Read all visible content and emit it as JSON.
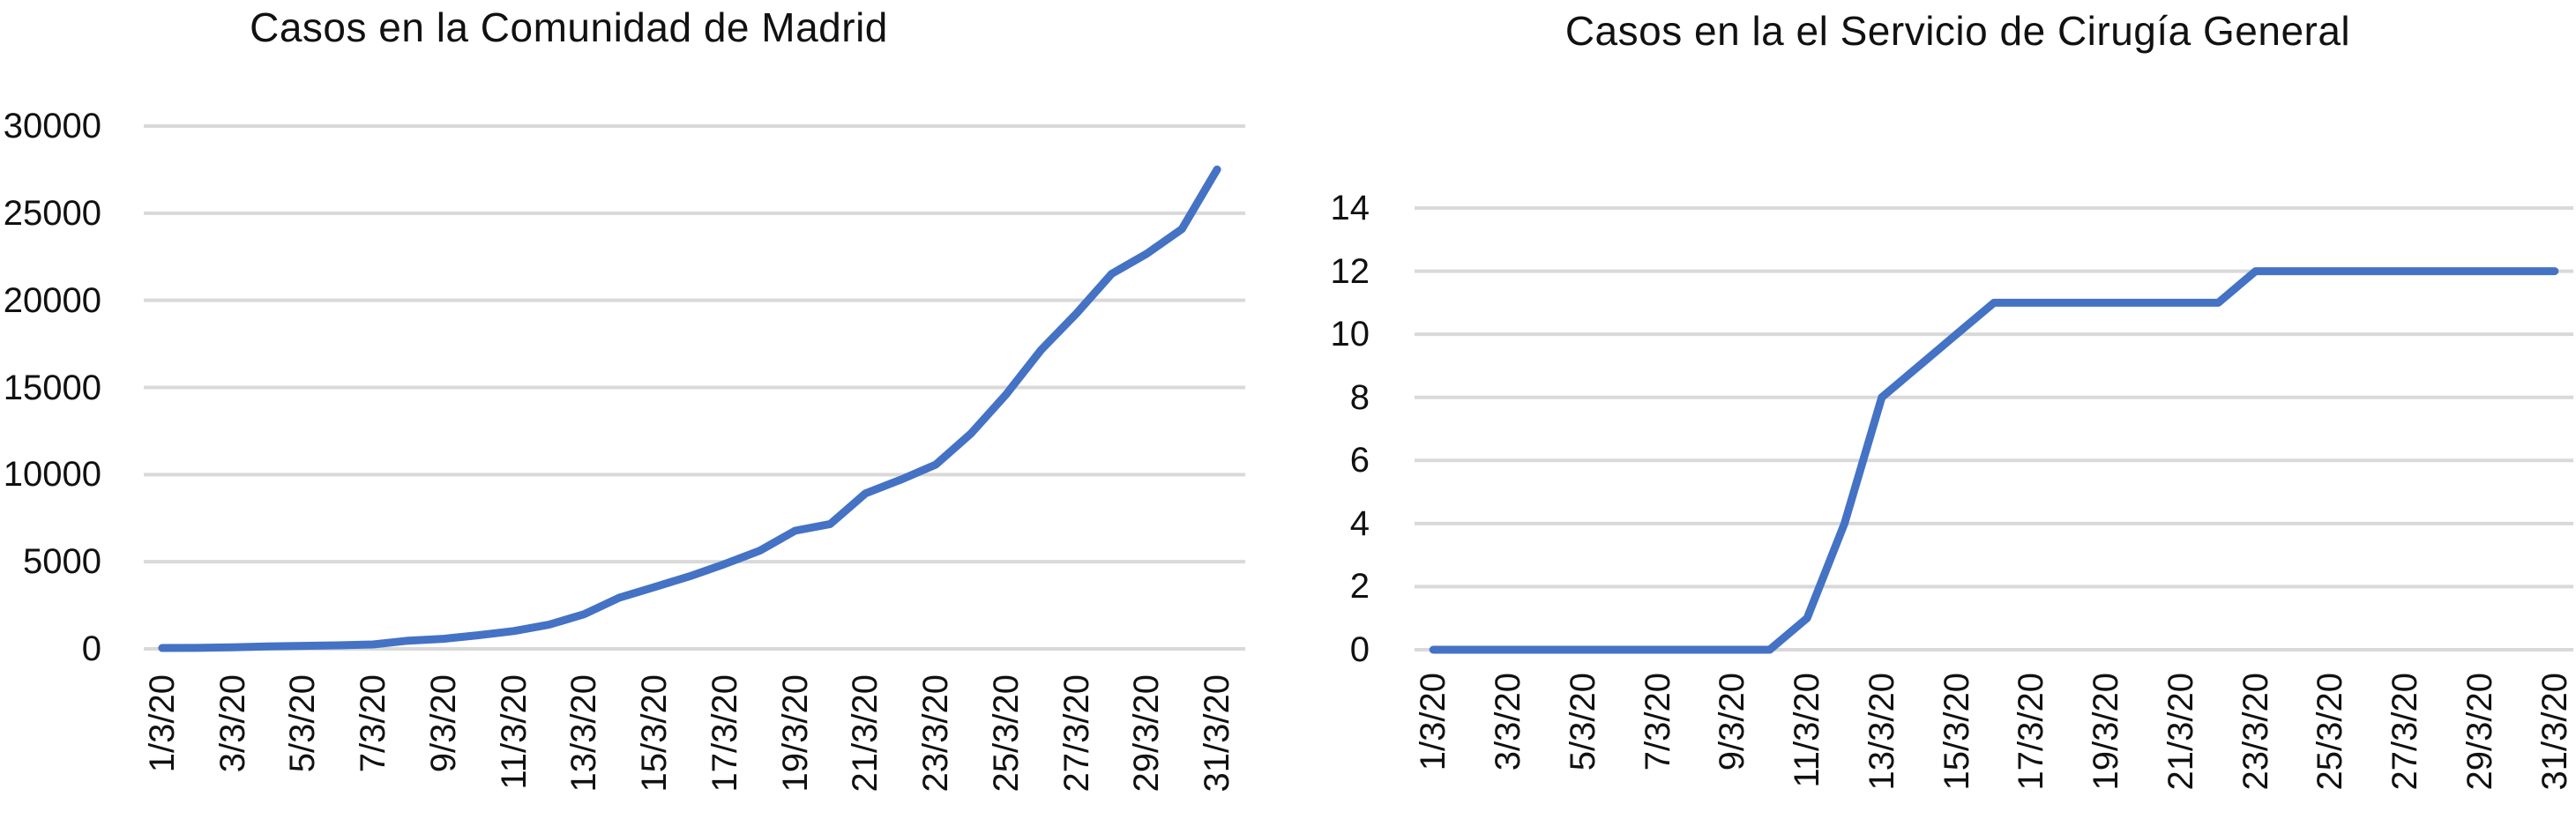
{
  "figure": {
    "background_color": "#ffffff",
    "text_color": "#111111"
  },
  "chart_data": [
    {
      "type": "line",
      "title": "Casos en la Comunidad de Madrid",
      "line_color": "#4472C4",
      "grid_color": "#D9D9D9",
      "grid": true,
      "legend_position": "none",
      "xlabel": "",
      "ylabel": "",
      "ylim": [
        0,
        30000
      ],
      "yticks": [
        0,
        5000,
        10000,
        15000,
        20000,
        25000,
        30000
      ],
      "xtick_labels_shown": [
        "1/3/20",
        "3/3/20",
        "5/3/20",
        "7/3/20",
        "9/3/20",
        "11/3/20",
        "13/3/20",
        "15/3/20",
        "17/3/20",
        "19/3/20",
        "21/3/20",
        "23/3/20",
        "25/3/20",
        "27/3/20",
        "29/3/20",
        "31/3/20"
      ],
      "x": [
        "1/3/20",
        "2/3/20",
        "3/3/20",
        "4/3/20",
        "5/3/20",
        "6/3/20",
        "7/3/20",
        "8/3/20",
        "9/3/20",
        "10/3/20",
        "11/3/20",
        "12/3/20",
        "13/3/20",
        "14/3/20",
        "15/3/20",
        "16/3/20",
        "17/3/20",
        "18/3/20",
        "19/3/20",
        "20/3/20",
        "21/3/20",
        "22/3/20",
        "23/3/20",
        "24/3/20",
        "25/3/20",
        "26/3/20",
        "27/3/20",
        "28/3/20",
        "29/3/20",
        "30/3/20",
        "31/3/20"
      ],
      "values": [
        49,
        58,
        90,
        137,
        174,
        202,
        252,
        469,
        577,
        782,
        1024,
        1388,
        1990,
        2940,
        3544,
        4165,
        4871,
        5637,
        6777,
        7165,
        8921,
        9702,
        10575,
        12352,
        14597,
        17166,
        19243,
        21520,
        22677,
        24090,
        27509
      ]
    },
    {
      "type": "line",
      "title": "Casos en la el Servicio de Cirugía General",
      "line_color": "#4472C4",
      "grid_color": "#D9D9D9",
      "grid": true,
      "legend_position": "none",
      "xlabel": "",
      "ylabel": "",
      "ylim": [
        0,
        14
      ],
      "yticks": [
        0,
        2,
        4,
        6,
        8,
        10,
        12,
        14
      ],
      "xtick_labels_shown": [
        "1/3/20",
        "3/3/20",
        "5/3/20",
        "7/3/20",
        "9/3/20",
        "11/3/20",
        "13/3/20",
        "15/3/20",
        "17/3/20",
        "19/3/20",
        "21/3/20",
        "23/3/20",
        "25/3/20",
        "27/3/20",
        "29/3/20",
        "31/3/20"
      ],
      "x": [
        "1/3/20",
        "2/3/20",
        "3/3/20",
        "4/3/20",
        "5/3/20",
        "6/3/20",
        "7/3/20",
        "8/3/20",
        "9/3/20",
        "10/3/20",
        "11/3/20",
        "12/3/20",
        "13/3/20",
        "14/3/20",
        "15/3/20",
        "16/3/20",
        "17/3/20",
        "18/3/20",
        "19/3/20",
        "20/3/20",
        "21/3/20",
        "22/3/20",
        "23/3/20",
        "24/3/20",
        "25/3/20",
        "26/3/20",
        "27/3/20",
        "28/3/20",
        "29/3/20",
        "30/3/20",
        "31/3/20"
      ],
      "values": [
        0,
        0,
        0,
        0,
        0,
        0,
        0,
        0,
        0,
        0,
        1,
        4,
        8,
        9,
        10,
        11,
        11,
        11,
        11,
        11,
        11,
        11,
        12,
        12,
        12,
        12,
        12,
        12,
        12,
        12,
        12
      ]
    }
  ]
}
